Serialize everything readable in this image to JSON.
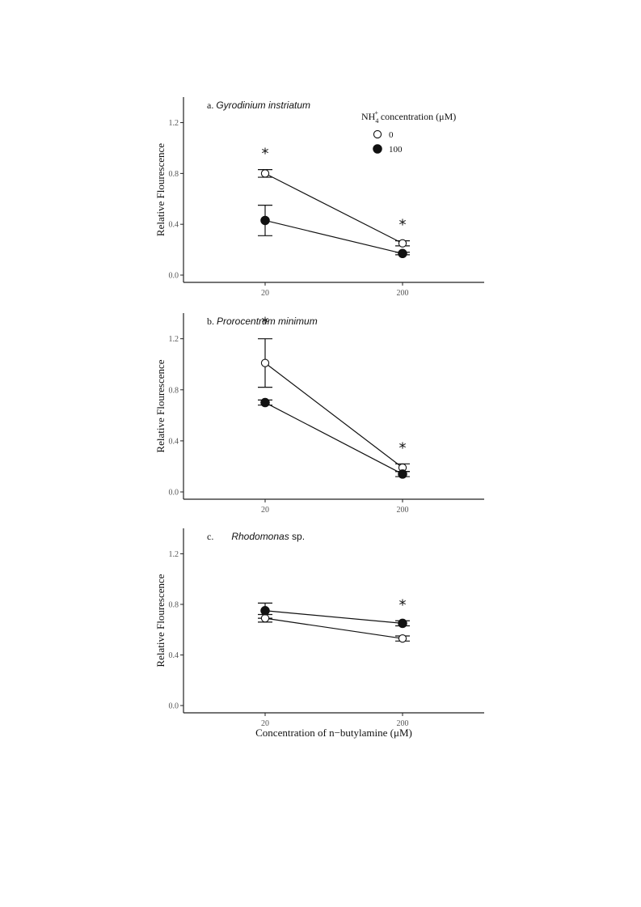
{
  "chart_data": [
    {
      "type": "line",
      "panel_label": "a.",
      "title": "Gyrodinium instriatum",
      "title_suffix": "",
      "ylabel": "Relative Flourescence",
      "ylim": [
        0,
        1.35
      ],
      "yticks": [
        "0.0",
        "0.4",
        "0.8",
        "1.2"
      ],
      "categories": [
        "20",
        "200"
      ],
      "series": [
        {
          "name": "0",
          "marker": "open",
          "values": [
            0.8,
            0.25
          ],
          "errors": [
            0.03,
            0.02
          ]
        },
        {
          "name": "100",
          "marker": "filled",
          "values": [
            0.43,
            0.17
          ],
          "errors": [
            0.12,
            0.01
          ]
        }
      ],
      "significance": [
        "*",
        "*"
      ],
      "legend": {
        "title_prefix": "NH",
        "title_sub": "4",
        "title_sup": "+",
        "title_suffix": " concentration (μM)",
        "position": "top-right"
      }
    },
    {
      "type": "line",
      "panel_label": "b.",
      "title": "Prorocentrum minimum",
      "title_suffix": "",
      "ylabel": "Relative Flourescence",
      "ylim": [
        0,
        1.35
      ],
      "yticks": [
        "0.0",
        "0.4",
        "0.8",
        "1.2"
      ],
      "categories": [
        "20",
        "200"
      ],
      "series": [
        {
          "name": "0",
          "marker": "open",
          "values": [
            1.01,
            0.19
          ],
          "errors": [
            0.19,
            0.03
          ]
        },
        {
          "name": "100",
          "marker": "filled",
          "values": [
            0.7,
            0.14
          ],
          "errors": [
            0.02,
            0.02
          ]
        }
      ],
      "significance": [
        "*",
        "*"
      ]
    },
    {
      "type": "line",
      "panel_label": "c.",
      "title": "Rhodomonas",
      "title_suffix": " sp.",
      "ylabel": "Relative Flourescence",
      "ylim": [
        0,
        1.35
      ],
      "yticks": [
        "0.0",
        "0.4",
        "0.8",
        "1.2"
      ],
      "categories": [
        "20",
        "200"
      ],
      "series": [
        {
          "name": "0",
          "marker": "open",
          "values": [
            0.69,
            0.53
          ],
          "errors": [
            0.03,
            0.02
          ]
        },
        {
          "name": "100",
          "marker": "filled",
          "values": [
            0.75,
            0.65
          ],
          "errors": [
            0.06,
            0.02
          ]
        }
      ],
      "significance": [
        "",
        "*"
      ],
      "xlabel": "Concentration of n−butylamine (μM)"
    }
  ]
}
